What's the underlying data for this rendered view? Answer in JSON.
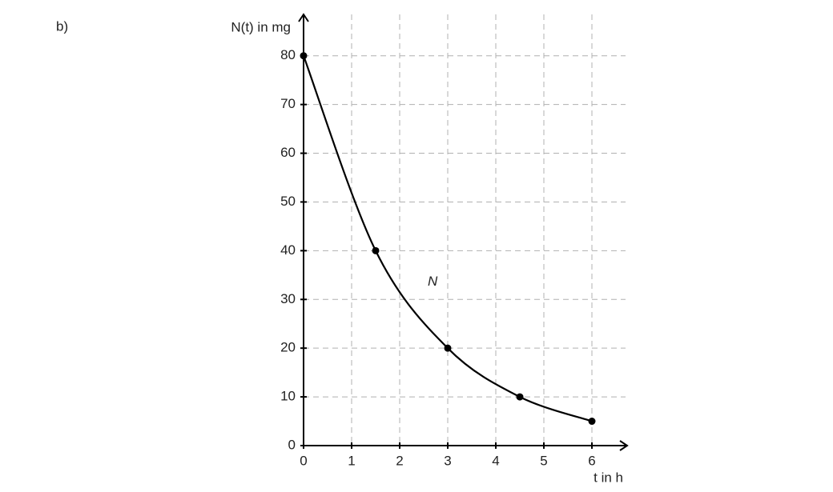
{
  "label": "b)",
  "chart_data": {
    "type": "line",
    "ylabel": "N(t) in mg",
    "xlabel": "t in h",
    "xlim": [
      0,
      6.7
    ],
    "ylim": [
      0,
      88
    ],
    "xticks": [
      0,
      1,
      2,
      3,
      4,
      5,
      6
    ],
    "yticks": [
      0,
      10,
      20,
      30,
      40,
      50,
      60,
      70,
      80
    ],
    "grid": true,
    "smooth": true,
    "markers": true,
    "series": [
      {
        "name": "N",
        "color": "#000000",
        "x": [
          0,
          1.5,
          3,
          4.5,
          6
        ],
        "values": [
          80,
          40,
          20,
          10,
          5
        ]
      }
    ]
  }
}
